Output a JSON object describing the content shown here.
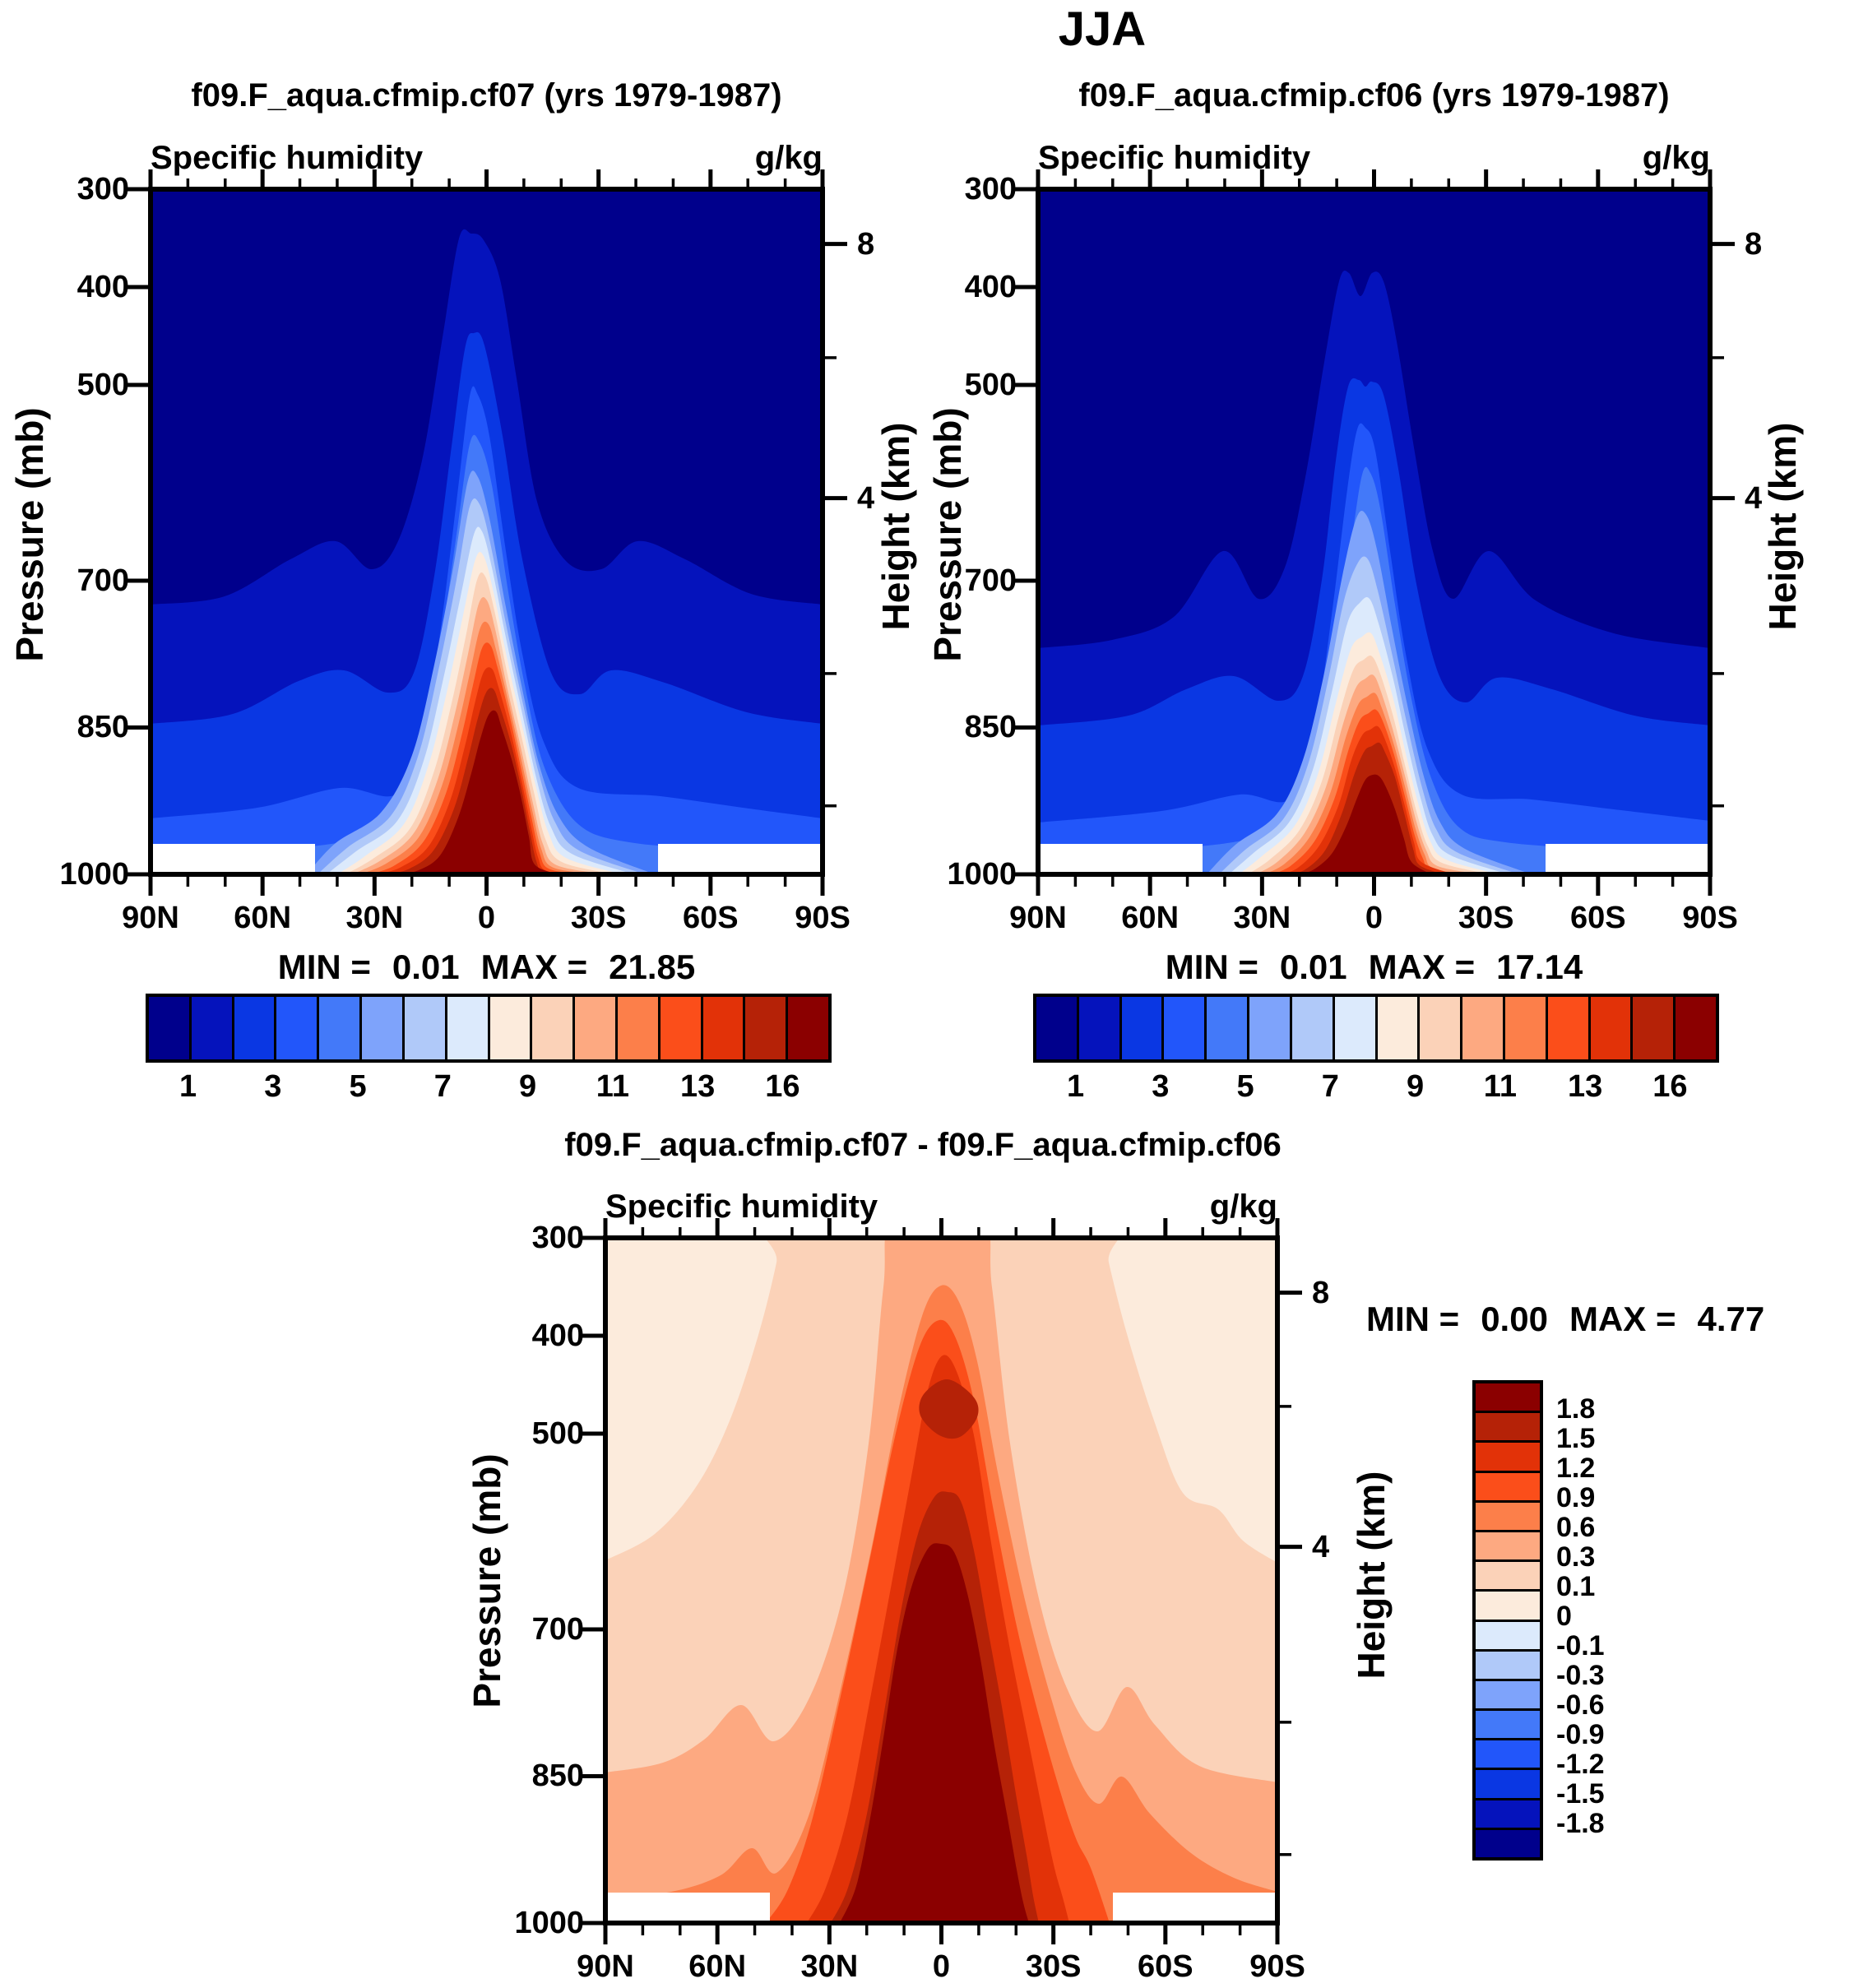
{
  "figure_title": "JJA",
  "palette": [
    "#00008C",
    "#0513BC",
    "#0A37E3",
    "#2256FA",
    "#4379F9",
    "#7EA3FB",
    "#B0C9F9",
    "#DCEAFC",
    "#FCEBDC",
    "#FBD2B8",
    "#FDA981",
    "#FC7F4A",
    "#FB4E1A",
    "#E23208",
    "#B52207",
    "#8B0000"
  ],
  "axes": {
    "pressure_label": "Pressure (mb)",
    "height_label": "Height (km)",
    "pressure_ticks": [
      "300",
      "400",
      "500",
      "700",
      "850",
      "1000"
    ],
    "height_tick_labels": [
      "8",
      "4"
    ],
    "lat_ticks": [
      "90N",
      "60N",
      "30N",
      "0",
      "30S",
      "60S",
      "90S"
    ]
  },
  "panels": [
    {
      "id": "cf07",
      "title": "f09.F_aqua.cfmip.cf07 (yrs 1979-1987)",
      "subtitle_left": "Specific humidity",
      "subtitle_right": "g/kg",
      "min_label": "MIN =",
      "min_value": "0.01",
      "max_label": "MAX =",
      "max_value": "21.85",
      "colorbar_labels": [
        "1",
        "3",
        "5",
        "7",
        "9",
        "11",
        "13",
        "16"
      ]
    },
    {
      "id": "cf06",
      "title": "f09.F_aqua.cfmip.cf06 (yrs 1979-1987)",
      "subtitle_left": "Specific humidity",
      "subtitle_right": "g/kg",
      "min_label": "MIN =",
      "min_value": "0.01",
      "max_label": "MAX =",
      "max_value": "17.14",
      "colorbar_labels": [
        "1",
        "3",
        "5",
        "7",
        "9",
        "11",
        "13",
        "16"
      ]
    },
    {
      "id": "diff",
      "title": "f09.F_aqua.cfmip.cf07 - f09.F_aqua.cfmip.cf06",
      "subtitle_left": "Specific humidity",
      "subtitle_right": "g/kg",
      "min_label": "MIN =",
      "min_value": "0.00",
      "max_label": "MAX =",
      "max_value": "4.77",
      "colorbar_labels": [
        "1.8",
        "1.5",
        "1.2",
        "0.9",
        "0.6",
        "0.3",
        "0.1",
        "0",
        "-0.1",
        "-0.3",
        "-0.6",
        "-0.9",
        "-1.2",
        "-1.5",
        "-1.8"
      ]
    }
  ],
  "chart_data": [
    {
      "type": "heatmap",
      "subtype": "filled-contour latitude-pressure cross-section",
      "title": "f09.F_aqua.cfmip.cf07 (yrs 1979-1987)",
      "season": "JJA",
      "variable": "Specific humidity",
      "units": "g/kg",
      "x_ticks": [
        "90N",
        "60N",
        "30N",
        "0",
        "30S",
        "60S",
        "90S"
      ],
      "ylabel": "Pressure (mb)",
      "y_ticks": [
        300,
        400,
        500,
        700,
        850,
        1000
      ],
      "y2label": "Height (km)",
      "y2_ticks": [
        8,
        4
      ],
      "contour_levels": [
        1,
        2,
        3,
        4,
        5,
        6,
        7,
        8,
        9,
        10,
        11,
        12,
        13,
        14,
        16
      ],
      "colorbar_labels": [
        1,
        3,
        5,
        7,
        9,
        11,
        13,
        16
      ],
      "min": 0.01,
      "max": 21.85,
      "equator_profile_estimate_gkg": {
        "1000mb": 21,
        "850mb": 13,
        "700mb": 8,
        "500mb": 3.5,
        "400mb": 2,
        "300mb": 1
      },
      "structure": "Single moist plume centered near the equator reaching ~350 mb; q>16 g/kg core below ~830 mb within ~12N-12S; shoulder maxima in the 1-2 g/kg contours near 35N/35S; <1 g/kg poleward and aloft; near-surface strip masked white poleward of ~45N/45S"
    },
    {
      "type": "heatmap",
      "subtype": "filled-contour latitude-pressure cross-section",
      "title": "f09.F_aqua.cfmip.cf06 (yrs 1979-1987)",
      "season": "JJA",
      "variable": "Specific humidity",
      "units": "g/kg",
      "x_ticks": [
        "90N",
        "60N",
        "30N",
        "0",
        "30S",
        "60S",
        "90S"
      ],
      "ylabel": "Pressure (mb)",
      "y_ticks": [
        300,
        400,
        500,
        700,
        850,
        1000
      ],
      "y2label": "Height (km)",
      "y2_ticks": [
        8,
        4
      ],
      "contour_levels": [
        1,
        2,
        3,
        4,
        5,
        6,
        7,
        8,
        9,
        10,
        11,
        12,
        13,
        14,
        16
      ],
      "colorbar_labels": [
        1,
        3,
        5,
        7,
        9,
        11,
        13,
        16
      ],
      "min": 0.01,
      "max": 17.14,
      "equator_profile_estimate_gkg": {
        "1000mb": 17,
        "850mb": 11,
        "700mb": 7,
        "500mb": 3,
        "400mb": 1.5,
        "300mb": 0.8
      },
      "structure": "Narrower equatorial plume with a twin-peaked 1 g/kg contour near 400 mb; q>16 g/kg only in a small near-surface core; pronounced shoulder bumps near 40N/40S; near-surface strip masked white poleward of ~45N/45S"
    },
    {
      "type": "heatmap",
      "subtype": "filled-contour latitude-pressure cross-section difference",
      "title": "f09.F_aqua.cfmip.cf07 - f09.F_aqua.cfmip.cf06",
      "season": "JJA",
      "variable": "Specific humidity",
      "units": "g/kg",
      "x_ticks": [
        "90N",
        "60N",
        "30N",
        "0",
        "30S",
        "60S",
        "90S"
      ],
      "ylabel": "Pressure (mb)",
      "y_ticks": [
        300,
        400,
        500,
        700,
        850,
        1000
      ],
      "y2label": "Height (km)",
      "y2_ticks": [
        8,
        4
      ],
      "contour_levels": [
        -1.8,
        -1.5,
        -1.2,
        -0.9,
        -0.6,
        -0.3,
        -0.1,
        0,
        0.1,
        0.3,
        0.6,
        0.9,
        1.2,
        1.5,
        1.8
      ],
      "colorbar_labels": [
        1.8,
        1.5,
        1.2,
        0.9,
        0.6,
        0.3,
        0.1,
        0,
        -0.1,
        -0.3,
        -0.6,
        -0.9,
        -1.2,
        -1.5,
        -1.8
      ],
      "min": 0.0,
      "max": 4.77,
      "equator_profile_estimate_gkg": {
        "1000mb": 4.8,
        "850mb": 3.0,
        "700mb": 2.2,
        "500mb": 1.5,
        "460mb": 1.6,
        "400mb": 1.2,
        "300mb": 0.45
      },
      "structure": "Entirely positive difference; broad >1.8 g/kg dark-red core below ~600 mb spanning ~28N-28S; secondary 1.5-1.8 g/kg pocket near 460 mb at the equator; values decay to 0-0.1 g/kg in the upper-level polar corners; near-surface strip masked white poleward of ~45N/45S"
    }
  ]
}
